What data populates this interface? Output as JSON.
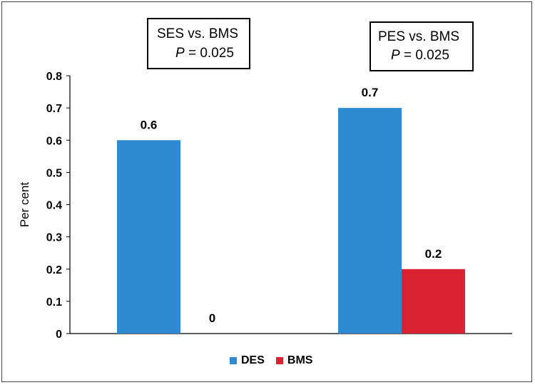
{
  "chart_data": {
    "type": "bar",
    "title": "",
    "xlabel": "",
    "ylabel": "Per cent",
    "ylim": [
      0,
      0.8
    ],
    "yticks": [
      "0",
      "0.1",
      "0.2",
      "0.3",
      "0.4",
      "0.5",
      "0.6",
      "0.7",
      "0.8"
    ],
    "groups": [
      "SES vs. BMS",
      "PES vs. BMS"
    ],
    "series": [
      {
        "name": "DES",
        "color": "#2f8bd1",
        "values": [
          0.6,
          0.7
        ],
        "labels": [
          "0.6",
          "0.7"
        ]
      },
      {
        "name": "BMS",
        "color": "#d92332",
        "values": [
          0,
          0.2
        ],
        "labels": [
          "0",
          "0.2"
        ]
      }
    ],
    "annotations": [
      {
        "line1": "SES vs. BMS",
        "p_symbol": "P",
        "p_text": " = 0.025"
      },
      {
        "line1": "PES vs. BMS",
        "p_symbol": "P",
        "p_text": " = 0.025"
      }
    ],
    "legend": {
      "position": "bottom",
      "items": [
        "DES",
        "BMS"
      ]
    },
    "grid": false
  }
}
